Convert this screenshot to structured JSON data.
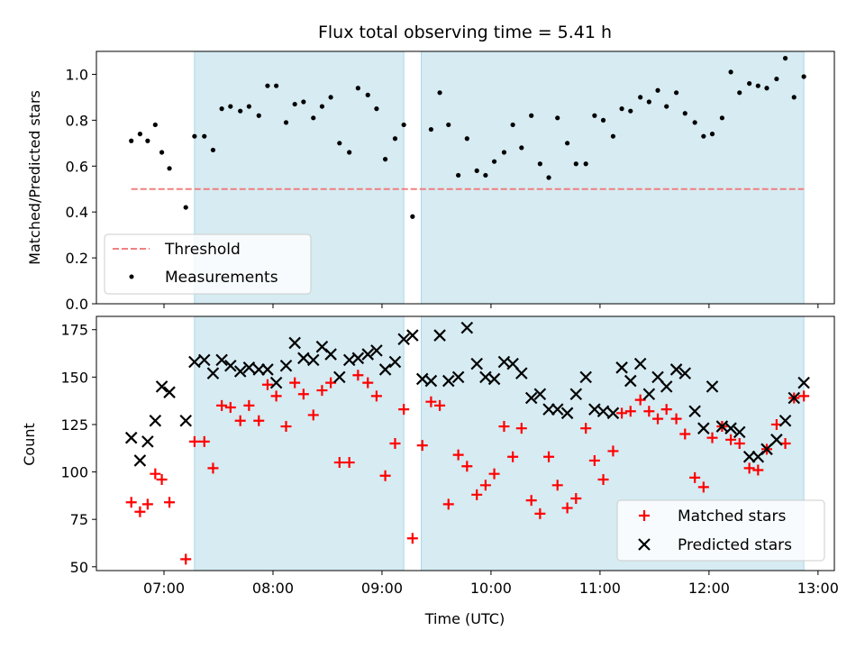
{
  "chart_data": {
    "type": "scatter",
    "title": "Flux total observing time = 5.41 h",
    "xlabel": "Time (UTC)",
    "xticks": [
      "07:00",
      "08:00",
      "09:00",
      "10:00",
      "11:00",
      "12:00",
      "13:00"
    ],
    "x_range_hours": [
      6.38,
      13.15
    ],
    "shaded_intervals": [
      [
        7.28,
        9.2
      ],
      [
        9.36,
        12.87
      ]
    ],
    "shade_color": "#add8e6",
    "panels": [
      {
        "ylabel": "Matched/Predicted stars",
        "ylim": [
          0,
          1.1
        ],
        "yticks": [
          "0.0",
          "0.2",
          "0.4",
          "0.6",
          "0.8",
          "1.0"
        ],
        "ytick_values": [
          0,
          0.2,
          0.4,
          0.6,
          0.8,
          1.0
        ],
        "legend_position": "lower-left",
        "threshold": {
          "name": "Threshold",
          "value": 0.5,
          "x_range": [
            6.7,
            12.87
          ],
          "color": "#f08080"
        },
        "series": [
          {
            "name": "Measurements",
            "marker": "dot",
            "color": "#000000",
            "x": [
              6.7,
              6.78,
              6.85,
              6.92,
              6.98,
              7.05,
              7.2,
              7.28,
              7.37,
              7.45,
              7.53,
              7.61,
              7.7,
              7.78,
              7.87,
              7.95,
              8.03,
              8.12,
              8.2,
              8.28,
              8.37,
              8.45,
              8.53,
              8.61,
              8.7,
              8.78,
              8.87,
              8.95,
              9.03,
              9.12,
              9.2,
              9.28,
              9.45,
              9.53,
              9.61,
              9.7,
              9.78,
              9.87,
              9.95,
              10.03,
              10.12,
              10.2,
              10.28,
              10.37,
              10.45,
              10.53,
              10.61,
              10.7,
              10.78,
              10.87,
              10.95,
              11.03,
              11.12,
              11.2,
              11.28,
              11.37,
              11.45,
              11.53,
              11.61,
              11.7,
              11.78,
              11.87,
              11.95,
              12.03,
              12.12,
              12.2,
              12.28,
              12.37,
              12.45,
              12.53,
              12.62,
              12.7,
              12.78,
              12.87
            ],
            "y": [
              0.71,
              0.74,
              0.71,
              0.78,
              0.66,
              0.59,
              0.42,
              0.73,
              0.73,
              0.67,
              0.85,
              0.86,
              0.84,
              0.86,
              0.82,
              0.95,
              0.95,
              0.79,
              0.87,
              0.88,
              0.81,
              0.86,
              0.9,
              0.7,
              0.66,
              0.94,
              0.91,
              0.85,
              0.63,
              0.72,
              0.78,
              0.38,
              0.76,
              0.92,
              0.78,
              0.56,
              0.72,
              0.58,
              0.56,
              0.62,
              0.66,
              0.78,
              0.68,
              0.82,
              0.61,
              0.55,
              0.81,
              0.7,
              0.61,
              0.61,
              0.82,
              0.8,
              0.73,
              0.85,
              0.84,
              0.9,
              0.88,
              0.93,
              0.86,
              0.92,
              0.83,
              0.79,
              0.73,
              0.74,
              0.81,
              1.01,
              0.92,
              0.96,
              0.95,
              0.94,
              0.98,
              1.07,
              0.9,
              0.99
            ]
          }
        ]
      },
      {
        "ylabel": "Count",
        "ylim": [
          48,
          182
        ],
        "yticks": [
          "50",
          "75",
          "100",
          "125",
          "150",
          "175"
        ],
        "ytick_values": [
          50,
          75,
          100,
          125,
          150,
          175
        ],
        "legend_position": "lower-right",
        "series": [
          {
            "name": "Matched stars",
            "marker": "plus",
            "color": "#ff0000",
            "x": [
              6.7,
              6.78,
              6.85,
              6.92,
              6.98,
              7.05,
              7.2,
              7.28,
              7.37,
              7.45,
              7.53,
              7.61,
              7.7,
              7.78,
              7.87,
              7.95,
              8.03,
              8.12,
              8.2,
              8.28,
              8.37,
              8.45,
              8.53,
              8.61,
              8.7,
              8.78,
              8.87,
              8.95,
              9.03,
              9.12,
              9.2,
              9.28,
              9.37,
              9.45,
              9.53,
              9.61,
              9.7,
              9.78,
              9.87,
              9.95,
              10.03,
              10.12,
              10.2,
              10.28,
              10.37,
              10.45,
              10.53,
              10.61,
              10.7,
              10.78,
              10.87,
              10.95,
              11.03,
              11.12,
              11.2,
              11.28,
              11.37,
              11.45,
              11.53,
              11.61,
              11.7,
              11.78,
              11.87,
              11.95,
              12.03,
              12.12,
              12.2,
              12.28,
              12.37,
              12.45,
              12.53,
              12.62,
              12.7,
              12.78,
              12.87
            ],
            "y": [
              84,
              79,
              83,
              99,
              96,
              84,
              54,
              116,
              116,
              102,
              135,
              134,
              127,
              135,
              127,
              146,
              140,
              124,
              147,
              141,
              130,
              143,
              147,
              105,
              105,
              151,
              147,
              140,
              98,
              115,
              133,
              65,
              114,
              137,
              135,
              83,
              109,
              103,
              88,
              93,
              99,
              124,
              108,
              123,
              85,
              78,
              108,
              93,
              81,
              86,
              123,
              106,
              96,
              111,
              131,
              132,
              138,
              132,
              128,
              133,
              128,
              120,
              97,
              92,
              118,
              124,
              117,
              115,
              102,
              101,
              112,
              125,
              115,
              139,
              140
            ]
          },
          {
            "name": "Predicted stars",
            "marker": "x",
            "color": "#000000",
            "x": [
              6.7,
              6.78,
              6.85,
              6.92,
              6.98,
              7.05,
              7.2,
              7.28,
              7.37,
              7.45,
              7.53,
              7.61,
              7.7,
              7.78,
              7.87,
              7.95,
              8.03,
              8.12,
              8.2,
              8.28,
              8.37,
              8.45,
              8.53,
              8.61,
              8.7,
              8.78,
              8.87,
              8.95,
              9.03,
              9.12,
              9.2,
              9.28,
              9.37,
              9.45,
              9.53,
              9.61,
              9.7,
              9.78,
              9.87,
              9.95,
              10.03,
              10.12,
              10.2,
              10.28,
              10.37,
              10.45,
              10.53,
              10.61,
              10.7,
              10.78,
              10.87,
              10.95,
              11.03,
              11.12,
              11.2,
              11.28,
              11.37,
              11.45,
              11.53,
              11.61,
              11.7,
              11.78,
              11.87,
              11.95,
              12.03,
              12.12,
              12.2,
              12.28,
              12.37,
              12.45,
              12.53,
              12.62,
              12.7,
              12.78,
              12.87
            ],
            "y": [
              118,
              106,
              116,
              127,
              145,
              142,
              127,
              158,
              159,
              152,
              159,
              156,
              153,
              155,
              154,
              154,
              147,
              156,
              168,
              160,
              159,
              166,
              162,
              150,
              159,
              160,
              162,
              164,
              154,
              158,
              170,
              172,
              149,
              148,
              172,
              148,
              150,
              176,
              157,
              150,
              149,
              158,
              157,
              152,
              139,
              141,
              133,
              133,
              131,
              141,
              150,
              133,
              132,
              131,
              155,
              148,
              157,
              141,
              150,
              145,
              154,
              152,
              132,
              123,
              145,
              124,
              123,
              121,
              108,
              108,
              112,
              117,
              127,
              139,
              147
            ]
          }
        ]
      }
    ]
  }
}
